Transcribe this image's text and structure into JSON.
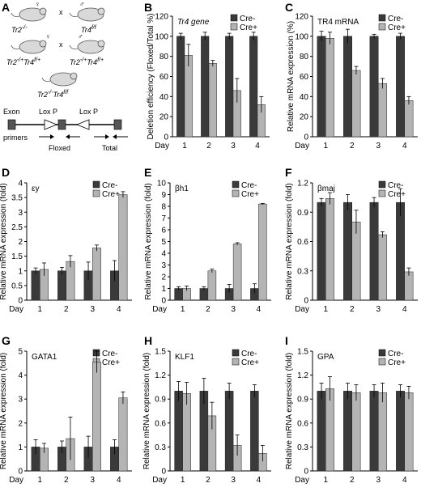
{
  "panel_a": {
    "letter": "A",
    "genotypes": {
      "tr2_base": "Tr2",
      "tr2_sup": "-/-",
      "female": "♀",
      "tr4_base": "Tr4",
      "tr4_sup": "f/f",
      "male": "♂",
      "cross": "x",
      "f1_left": {
        "a": "Tr2",
        "a_sup": "-/+",
        "b": "Tr4",
        "b_sup": "f/+",
        "sym": "♀"
      },
      "f1_right": {
        "a": "Tr2",
        "a_sup": "-/+",
        "b": "Tr4",
        "b_sup": "f/+",
        "sym": "♂"
      },
      "f2": {
        "a": "Tr2",
        "a_sup": "-/-",
        "b": "Tr4",
        "b_sup": "f/f"
      }
    },
    "diagram": {
      "exon": "Exon",
      "loxp1": "Lox P",
      "loxp2": "Lox P",
      "primers": "primers",
      "floxed": "Floxed",
      "total": "Total"
    }
  },
  "chart_data": [
    {
      "id": "B",
      "type": "bar",
      "title": "Tr4 gene",
      "title_italic": true,
      "xlabel": "Day",
      "ylabel": "Deletion efficiency (Floxed/Total %)",
      "categories": [
        "1",
        "2",
        "3",
        "4"
      ],
      "ylim": [
        0,
        120
      ],
      "yticks": [
        "0",
        "20",
        "40",
        "60",
        "80",
        "100",
        "120"
      ],
      "series": [
        {
          "name": "Cre-",
          "values": [
            100,
            100,
            100,
            100
          ],
          "errors": [
            3,
            4,
            3,
            4
          ]
        },
        {
          "name": "Cre+",
          "values": [
            81,
            73,
            46,
            32
          ],
          "errors": [
            11,
            3,
            12,
            8
          ]
        }
      ]
    },
    {
      "id": "C",
      "type": "bar",
      "title": "TR4 mRNA",
      "title_italic": false,
      "xlabel": "Day",
      "ylabel": "Relative mRNA expression (%)",
      "categories": [
        "1",
        "2",
        "3",
        "4"
      ],
      "ylim": [
        0,
        120
      ],
      "yticks": [
        "0",
        "20",
        "40",
        "60",
        "80",
        "100",
        "120"
      ],
      "series": [
        {
          "name": "Cre-",
          "values": [
            100,
            100,
            100,
            100
          ],
          "errors": [
            5,
            7,
            2,
            3
          ]
        },
        {
          "name": "Cre+",
          "values": [
            98,
            66,
            53,
            36
          ],
          "errors": [
            6,
            4,
            5,
            4
          ]
        }
      ]
    },
    {
      "id": "D",
      "type": "bar",
      "title": "εy",
      "title_italic": false,
      "xlabel": "Day",
      "ylabel": "Relative mRNA expression (fold)",
      "categories": [
        "1",
        "2",
        "3",
        "4"
      ],
      "ylim": [
        0,
        4
      ],
      "yticks": [
        "0",
        "0.5",
        "1",
        "1.5",
        "2",
        "2.5",
        "3",
        "3.5",
        "4"
      ],
      "series": [
        {
          "name": "Cre-",
          "values": [
            1,
            1,
            1,
            1
          ],
          "errors": [
            0.1,
            0.12,
            0.3,
            0.35
          ]
        },
        {
          "name": "Cre+",
          "values": [
            1.05,
            1.32,
            1.78,
            3.6
          ],
          "errors": [
            0.22,
            0.2,
            0.1,
            0.1
          ]
        }
      ]
    },
    {
      "id": "E",
      "type": "bar",
      "title": "βh1",
      "title_italic": false,
      "xlabel": "Day",
      "ylabel": "Relative mRNA expression (fold)",
      "categories": [
        "1",
        "2",
        "3",
        "4"
      ],
      "ylim": [
        0,
        10
      ],
      "yticks": [
        "0",
        "1",
        "2",
        "3",
        "4",
        "5",
        "6",
        "7",
        "8",
        "9",
        "10"
      ],
      "series": [
        {
          "name": "Cre-",
          "values": [
            1,
            1,
            1,
            1
          ],
          "errors": [
            0.15,
            0.15,
            0.35,
            0.4
          ]
        },
        {
          "name": "Cre+",
          "values": [
            1,
            2.5,
            4.8,
            8.2
          ],
          "errors": [
            0.2,
            0.15,
            0.1,
            0.05
          ]
        }
      ]
    },
    {
      "id": "F",
      "type": "bar",
      "title": "βmaj",
      "title_italic": false,
      "xlabel": "Day",
      "ylabel": "Relative mRNA expression (fold)",
      "categories": [
        "1",
        "2",
        "3",
        "4"
      ],
      "ylim": [
        0,
        1.2
      ],
      "yticks": [
        "0",
        "0.3",
        "0.6",
        "0.9",
        "1.2"
      ],
      "series": [
        {
          "name": "Cre-",
          "values": [
            1,
            1,
            1,
            1
          ],
          "errors": [
            0.04,
            0.08,
            0.05,
            0.14
          ]
        },
        {
          "name": "Cre+",
          "values": [
            1.04,
            0.8,
            0.67,
            0.29
          ],
          "errors": [
            0.06,
            0.12,
            0.03,
            0.04
          ]
        }
      ]
    },
    {
      "id": "G",
      "type": "bar",
      "title": "GATA1",
      "title_italic": false,
      "xlabel": "Day",
      "ylabel": "Relative mRNA expression (fold)",
      "categories": [
        "1",
        "2",
        "3",
        "4"
      ],
      "ylim": [
        0,
        5
      ],
      "yticks": [
        "0",
        "1",
        "2",
        "3",
        "4",
        "5"
      ],
      "series": [
        {
          "name": "Cre-",
          "values": [
            1,
            1,
            1,
            1
          ],
          "errors": [
            0.3,
            0.25,
            0.45,
            0.3
          ]
        },
        {
          "name": "Cre+",
          "values": [
            0.95,
            1.35,
            4.55,
            3.05
          ],
          "errors": [
            0.2,
            0.9,
            0.45,
            0.25
          ]
        }
      ]
    },
    {
      "id": "H",
      "type": "bar",
      "title": "KLF1",
      "title_italic": false,
      "xlabel": "Day",
      "ylabel": "Relative mRNA expression (fold)",
      "categories": [
        "1",
        "2",
        "3",
        "4"
      ],
      "ylim": [
        0,
        1.5
      ],
      "yticks": [
        "0",
        "0.3",
        "0.6",
        "0.9",
        "1.2",
        "1.5"
      ],
      "series": [
        {
          "name": "Cre-",
          "values": [
            1,
            1,
            1,
            1
          ],
          "errors": [
            0.12,
            0.16,
            0.1,
            0.08
          ]
        },
        {
          "name": "Cre+",
          "values": [
            0.97,
            0.69,
            0.32,
            0.22
          ],
          "errors": [
            0.14,
            0.17,
            0.13,
            0.1
          ]
        }
      ]
    },
    {
      "id": "I",
      "type": "bar",
      "title": "GPA",
      "title_italic": false,
      "xlabel": "Day",
      "ylabel": "Relative mRNA expression (fold)",
      "categories": [
        "1",
        "2",
        "3",
        "4"
      ],
      "ylim": [
        0,
        1.5
      ],
      "yticks": [
        "0",
        "0.3",
        "0.6",
        "0.9",
        "1.2",
        "1.5"
      ],
      "series": [
        {
          "name": "Cre-",
          "values": [
            1,
            1,
            1,
            1
          ],
          "errors": [
            0.1,
            0.1,
            0.08,
            0.08
          ]
        },
        {
          "name": "Cre+",
          "values": [
            1.03,
            0.98,
            0.98,
            0.98
          ],
          "errors": [
            0.15,
            0.1,
            0.12,
            0.08
          ]
        }
      ]
    }
  ],
  "colors": {
    "cre_minus": "#3a3a3a",
    "cre_plus": "#b4b4b4",
    "axis": "#000000",
    "mouse": "#d9d9d9"
  }
}
